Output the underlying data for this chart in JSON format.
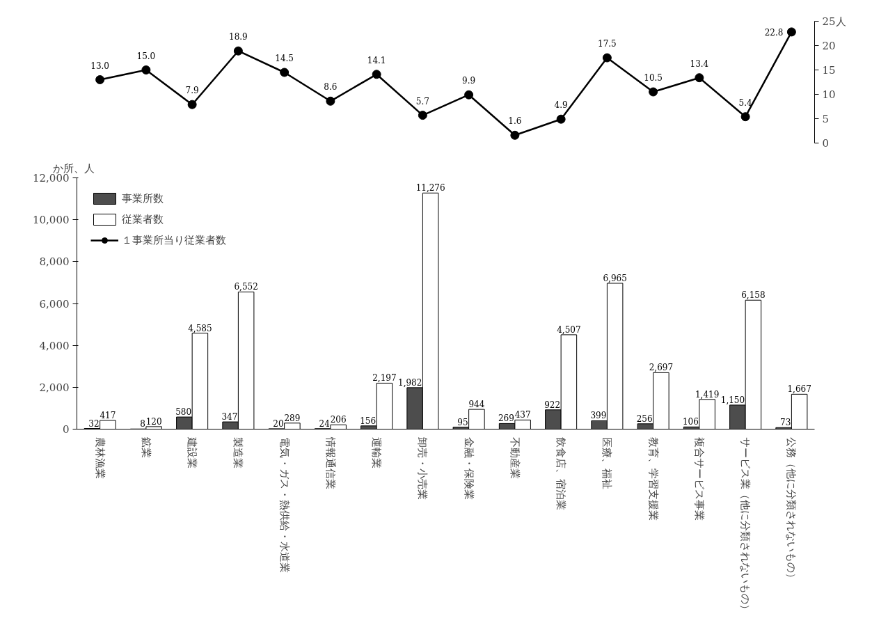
{
  "chart_data": [
    {
      "type": "line",
      "categories": [
        null,
        null,
        null,
        null,
        null,
        null,
        null,
        null,
        null,
        null,
        null,
        null,
        null,
        null,
        null,
        null
      ],
      "series": [
        {
          "name": "１事業所当り従業者数",
          "color": "#000000",
          "values": [
            13.0,
            15.0,
            7.9,
            18.9,
            14.5,
            8.6,
            14.1,
            5.7,
            9.9,
            1.6,
            4.9,
            17.5,
            10.5,
            13.4,
            5.4,
            22.8
          ],
          "value_labels": [
            "13.0",
            "15.0",
            "7.9",
            "18.9",
            "14.5",
            "8.6",
            "14.1",
            "5.7",
            "9.9",
            "1.6",
            "4.9",
            "17.5",
            "10.5",
            "13.4",
            "5.4",
            "22.8"
          ]
        }
      ],
      "ylim": [
        0,
        25
      ],
      "yticks": [
        0,
        5,
        10,
        15,
        20,
        {
          "value": 25,
          "label": "25人"
        }
      ],
      "tick_labels": "y",
      "marker": "circle",
      "grid": false
    },
    {
      "type": "bar",
      "ylabel": "か所、人",
      "categories": [
        "農林漁業",
        "鉱業",
        "建設業",
        "製造業",
        "電気・ガス・熱供給・水道業",
        "情報通信業",
        "運輸業",
        "卸売・小売業",
        "金融・保険業",
        "不動産業",
        "飲食店、宿泊業",
        "医療、福祉",
        "教育、学習支援業",
        "複合サービス事業",
        "サービス業（他に分類されないもの）",
        "公務（他に分類されないもの）"
      ],
      "series": [
        {
          "name": "事業所数",
          "type": "bar",
          "color": "#4d4d4d",
          "values": [
            32,
            8,
            580,
            347,
            20,
            24,
            156,
            1982,
            95,
            269,
            922,
            399,
            256,
            106,
            1150,
            73
          ],
          "value_labels": [
            "32",
            "8",
            "580",
            "347",
            "20",
            "24",
            "156",
            "1,982",
            "95",
            "269",
            "922",
            "399",
            "256",
            "106",
            "1,150",
            "73"
          ]
        },
        {
          "name": "従業者数",
          "type": "bar",
          "color": "#ffffff",
          "values": [
            417,
            120,
            4585,
            6552,
            289,
            206,
            2197,
            11276,
            944,
            437,
            4507,
            6965,
            2697,
            1419,
            6158,
            1667
          ],
          "value_labels": [
            "417",
            "120",
            "4,585",
            "6,552",
            "289",
            "206",
            "2,197",
            "11,276",
            "944",
            "437",
            "4,507",
            "6,965",
            "2,697",
            "1,419",
            "6,158",
            "1,667"
          ]
        }
      ],
      "ylim": [
        0,
        12000
      ],
      "yticks": [
        0,
        {
          "value": 2000,
          "label": "2,000"
        },
        {
          "value": 4000,
          "label": "4,000"
        },
        {
          "value": 6000,
          "label": "6,000"
        },
        {
          "value": 8000,
          "label": "8,000"
        },
        {
          "value": 10000,
          "label": "10,000"
        },
        {
          "value": 12000,
          "label": "12,000"
        }
      ],
      "grid": false,
      "legend": "top left"
    }
  ]
}
